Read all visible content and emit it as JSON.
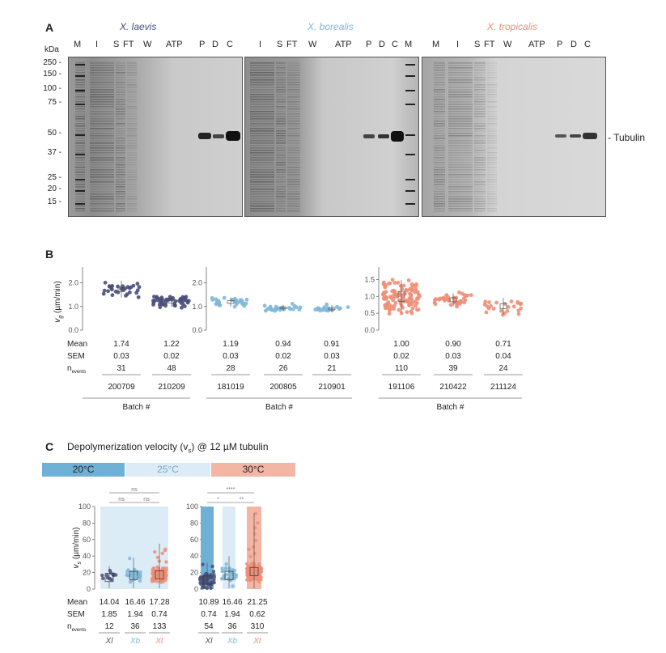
{
  "panelA": {
    "letter": "A",
    "species": [
      "X. laevis",
      "X. borealis",
      "X. tropicalis"
    ],
    "species_colors": [
      "#4a4f7a",
      "#7fb8d8",
      "#ef8e77"
    ],
    "kda_label": "kDa",
    "kda_ticks": [
      "250",
      "150",
      "100",
      "75",
      "50",
      "37",
      "25",
      "20",
      "15"
    ],
    "gel1_lanes": [
      "M",
      "I",
      "S",
      "FT",
      "W",
      "ATP",
      "P",
      "D",
      "C"
    ],
    "gel2_lanes": [
      "I",
      "S",
      "FT",
      "W",
      "ATP",
      "P",
      "D",
      "C",
      "M"
    ],
    "gel3_lanes": [
      "M",
      "I",
      "S",
      "FT",
      "W",
      "ATP",
      "P",
      "D",
      "C"
    ],
    "tubulin_label": "- Tubulin"
  },
  "panelB": {
    "letter": "B",
    "ylabel": "v (µm/min)",
    "ylabel_sub": "g",
    "row_labels": [
      "Mean",
      "SEM",
      "n"
    ],
    "n_sub": "events",
    "xlabel": "Batch #",
    "groups": [
      {
        "ticks": [
          "0.0",
          "1.0",
          "2.0"
        ],
        "batches": [
          {
            "id": "200709",
            "mean": "1.74",
            "sem": "0.03",
            "n": "31"
          },
          {
            "id": "210209",
            "mean": "1.22",
            "sem": "0.02",
            "n": "48"
          }
        ]
      },
      {
        "ticks": [
          "0.0",
          "1.0",
          "2.0"
        ],
        "batches": [
          {
            "id": "181019",
            "mean": "1.19",
            "sem": "0.03",
            "n": "28"
          },
          {
            "id": "200805",
            "mean": "0.94",
            "sem": "0.02",
            "n": "26"
          },
          {
            "id": "210901",
            "mean": "0.91",
            "sem": "0.03",
            "n": "21"
          }
        ]
      },
      {
        "ticks": [
          "0.0",
          "0.5",
          "1.0",
          "1.5"
        ],
        "batches": [
          {
            "id": "191106",
            "mean": "1.00",
            "sem": "0.02",
            "n": "110"
          },
          {
            "id": "210422",
            "mean": "0.90",
            "sem": "0.03",
            "n": "39"
          },
          {
            "id": "211124",
            "mean": "0.71",
            "sem": "0.04",
            "n": "24"
          }
        ]
      }
    ]
  },
  "panelC": {
    "letter": "C",
    "title": "Depolymerization velocity (v",
    "title_sub": "s",
    "title_end": ") @ 12 µM tubulin",
    "temps": [
      "20°C",
      "25°C",
      "30°C"
    ],
    "temp_colors": [
      "#6fb0d6",
      "#dcecf6",
      "#f4b6a4"
    ],
    "ylabel": "v (µm/min)",
    "ylabel_sub": "s",
    "ticks": [
      "0",
      "20",
      "40",
      "60",
      "80",
      "100"
    ],
    "left_sig": [
      "ns",
      "ns",
      "ns"
    ],
    "right_sig": [
      "****",
      "*",
      "**"
    ],
    "row_labels": [
      "Mean",
      "SEM",
      "n"
    ],
    "n_sub": "events",
    "left": [
      {
        "sp": "Xl",
        "mean": "14.04",
        "sem": "1.85",
        "n": "12"
      },
      {
        "sp": "Xb",
        "mean": "16.46",
        "sem": "1.94",
        "n": "36"
      },
      {
        "sp": "Xt",
        "mean": "17.28",
        "sem": "0.74",
        "n": "133"
      }
    ],
    "right": [
      {
        "sp": "Xl",
        "mean": "10.89",
        "sem": "0.74",
        "n": "54"
      },
      {
        "sp": "Xb",
        "mean": "16.46",
        "sem": "1.94",
        "n": "36"
      },
      {
        "sp": "Xt",
        "mean": "21.25",
        "sem": "0.62",
        "n": "310"
      }
    ]
  }
}
